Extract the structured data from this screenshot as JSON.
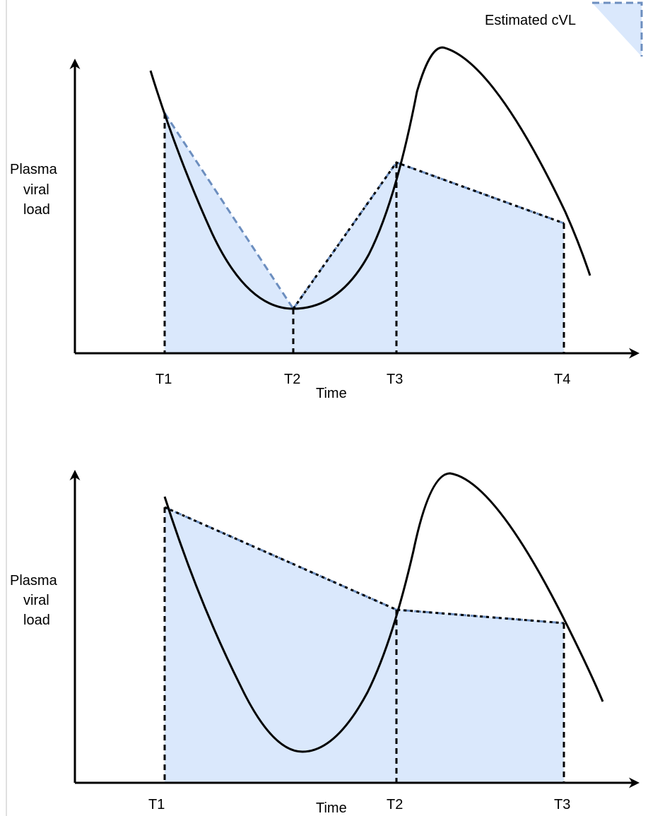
{
  "colors": {
    "fill": "#dae8fc",
    "blue_dash": "#6c8ebf",
    "line": "#000000",
    "left_border": "#e0e0e0"
  },
  "legend": {
    "label": "Estimated cVL"
  },
  "panels": [
    {
      "ylabel": [
        "Plasma",
        "viral",
        "load"
      ],
      "xlabel": "Time",
      "ticks": [
        "T1",
        "T2",
        "T3",
        "T4"
      ]
    },
    {
      "ylabel": [
        "Plasma",
        "viral",
        "load"
      ],
      "xlabel": "Time",
      "ticks": [
        "T1",
        "T2",
        "T3"
      ]
    }
  ]
}
